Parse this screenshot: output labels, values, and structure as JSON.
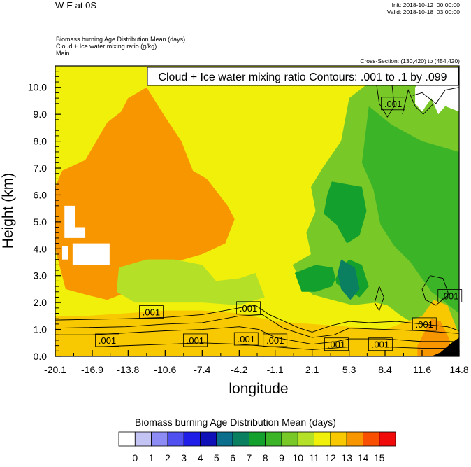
{
  "header": {
    "title": "W-E at 0S",
    "init": "Init: 2018-10-12_00:00:00",
    "valid": "Valid: 2018-10-18_03:00:00"
  },
  "meta": {
    "field1": "Biomass burning Age Distribution Mean   (days)",
    "field2": "Cloud + Ice water mixing ratio   (g/kg)",
    "field3": "Main",
    "cross_section": "Cross-Section: (130,420) to (454,420)"
  },
  "contour_label": "Cloud + Ice water mixing ratio Contours: .001 to .1 by .099",
  "colors": {
    "palette": [
      "#ffffff",
      "#c4c4f4",
      "#8c8cf4",
      "#5050f0",
      "#1e1ee8",
      "#1010b8",
      "#0a6e8c",
      "#0a8060",
      "#14a02c",
      "#3cb428",
      "#78c828",
      "#b4e028",
      "#f0f00a",
      "#f8c800",
      "#f89600",
      "#f85000",
      "#f00a0a"
    ]
  },
  "chart_data": {
    "type": "heatmap",
    "title": "W-E at 0S",
    "xlabel": "longitude",
    "ylabel": "Height (km)",
    "xlim": [
      -20.1,
      14.8
    ],
    "ylim": [
      0.0,
      10.8
    ],
    "x_ticks": [
      "-20.1",
      "-16.9",
      "-13.8",
      "-10.6",
      "-7.4",
      "-4.2",
      "-1.1",
      "2.1",
      "5.3",
      "8.4",
      "11.6",
      "14.8"
    ],
    "y_ticks": [
      "0.0",
      "1.0",
      "2.0",
      "3.0",
      "4.0",
      "5.0",
      "6.0",
      "7.0",
      "8.0",
      "9.0",
      "10.0"
    ],
    "colorbar": {
      "title": "Biomass burning Age Distribution Mean  (days)",
      "labels": [
        "0",
        "1",
        "2",
        "3",
        "4",
        "5",
        "6",
        "7",
        "8",
        "9",
        "10",
        "11",
        "12",
        "13",
        "14",
        "15"
      ]
    },
    "filled_regions": [
      {
        "name": "background",
        "days": 11.5,
        "lon": [
          -20.1,
          14.8
        ],
        "z": [
          0.0,
          10.8
        ]
      },
      {
        "name": "western-age-13",
        "days": 13,
        "polygon": [
          [
            -19.5,
            6.9
          ],
          [
            -17.5,
            7.3
          ],
          [
            -15.6,
            8.7
          ],
          [
            -14.4,
            9.1
          ],
          [
            -13.8,
            9.6
          ],
          [
            -12.2,
            10.0
          ],
          [
            -10.6,
            8.9
          ],
          [
            -9.2,
            8.0
          ],
          [
            -8.2,
            6.9
          ],
          [
            -7.0,
            6.6
          ],
          [
            -5.2,
            5.6
          ],
          [
            -4.6,
            5.1
          ],
          [
            -5.4,
            4.2
          ],
          [
            -7.4,
            3.8
          ],
          [
            -10.6,
            3.4
          ],
          [
            -13.2,
            3.3
          ],
          [
            -13.8,
            2.4
          ],
          [
            -15.6,
            2.1
          ],
          [
            -17.5,
            2.3
          ],
          [
            -19.2,
            2.5
          ],
          [
            -20.1,
            4.0
          ],
          [
            -20.1,
            6.3
          ]
        ]
      },
      {
        "name": "mid-age-10",
        "days": 10,
        "polygon": [
          [
            -14.6,
            3.3
          ],
          [
            -12.2,
            3.6
          ],
          [
            -9.8,
            3.6
          ],
          [
            -7.4,
            3.4
          ],
          [
            -6.2,
            2.8
          ],
          [
            -4.2,
            2.9
          ],
          [
            -2.8,
            3.1
          ],
          [
            -2.0,
            2.2
          ],
          [
            -4.2,
            1.9
          ],
          [
            -7.4,
            2.0
          ],
          [
            -10.6,
            2.0
          ],
          [
            -13.2,
            2.0
          ],
          [
            -14.8,
            2.4
          ]
        ]
      },
      {
        "name": "eastern-age-9",
        "days": 9,
        "polygon": [
          [
            3.0,
            7.0
          ],
          [
            4.6,
            8.0
          ],
          [
            5.3,
            9.6
          ],
          [
            6.8,
            10.1
          ],
          [
            8.4,
            10.3
          ],
          [
            11.0,
            10.3
          ],
          [
            14.8,
            10.8
          ],
          [
            14.8,
            0.9
          ],
          [
            12.6,
            1.1
          ],
          [
            11.0,
            1.2
          ],
          [
            9.8,
            1.5
          ],
          [
            8.6,
            1.9
          ],
          [
            7.6,
            2.0
          ],
          [
            5.6,
            1.9
          ],
          [
            3.8,
            2.1
          ],
          [
            2.1,
            2.3
          ],
          [
            1.2,
            2.8
          ],
          [
            0.4,
            3.4
          ],
          [
            2.0,
            3.8
          ],
          [
            1.6,
            4.6
          ],
          [
            2.4,
            5.4
          ],
          [
            2.0,
            6.3
          ]
        ]
      },
      {
        "name": "eastern-age-8",
        "days": 8,
        "polygon": [
          [
            7.0,
            9.3
          ],
          [
            9.0,
            8.6
          ],
          [
            11.6,
            8.0
          ],
          [
            14.8,
            7.6
          ],
          [
            14.8,
            1.6
          ],
          [
            12.4,
            2.4
          ],
          [
            10.6,
            3.5
          ],
          [
            9.2,
            4.1
          ],
          [
            8.0,
            4.9
          ],
          [
            7.4,
            6.2
          ],
          [
            6.4,
            7.2
          ]
        ]
      },
      {
        "name": "core-age-7",
        "days": 7,
        "polygon": [
          [
            3.8,
            6.5
          ],
          [
            6.4,
            6.3
          ],
          [
            6.8,
            5.4
          ],
          [
            6.2,
            4.5
          ],
          [
            5.1,
            4.2
          ],
          [
            4.2,
            4.9
          ],
          [
            3.1,
            5.3
          ],
          [
            3.4,
            6.0
          ]
        ]
      },
      {
        "name": "lower-core-age-7",
        "days": 7,
        "polygon": [
          [
            0.6,
            3.1
          ],
          [
            2.4,
            3.4
          ],
          [
            3.9,
            3.3
          ],
          [
            4.2,
            2.7
          ],
          [
            6.2,
            2.2
          ],
          [
            7.0,
            2.6
          ],
          [
            6.4,
            3.4
          ],
          [
            5.3,
            3.6
          ],
          [
            4.6,
            3.3
          ],
          [
            3.8,
            2.6
          ],
          [
            2.4,
            2.4
          ],
          [
            1.2,
            2.4
          ]
        ]
      },
      {
        "name": "core-age-6",
        "days": 6,
        "polygon": [
          [
            4.6,
            3.6
          ],
          [
            5.8,
            3.3
          ],
          [
            6.2,
            2.5
          ],
          [
            5.4,
            2.1
          ],
          [
            4.6,
            2.5
          ],
          [
            4.3,
            3.1
          ]
        ]
      },
      {
        "name": "surface-age-12",
        "days": 12,
        "polygon": [
          [
            -20.1,
            1.5
          ],
          [
            -17.5,
            1.5
          ],
          [
            -14.0,
            1.6
          ],
          [
            -10.6,
            1.7
          ],
          [
            -7.4,
            1.7
          ],
          [
            -4.2,
            1.6
          ],
          [
            -1.1,
            1.3
          ],
          [
            2.1,
            1.2
          ],
          [
            5.3,
            1.1
          ],
          [
            8.4,
            1.0
          ],
          [
            11.6,
            1.5
          ],
          [
            12.6,
            2.1
          ],
          [
            13.8,
            1.9
          ],
          [
            14.8,
            0.8
          ],
          [
            14.8,
            0.0
          ],
          [
            -20.1,
            0.0
          ]
        ]
      },
      {
        "name": "surface-age-13",
        "days": 13,
        "polygon": [
          [
            11.2,
            0.4
          ],
          [
            12.4,
            1.4
          ],
          [
            13.2,
            1.3
          ],
          [
            14.0,
            0.6
          ],
          [
            14.0,
            0.0
          ],
          [
            11.2,
            0.0
          ]
        ]
      },
      {
        "name": "missing-a",
        "days": 0,
        "polygon": [
          [
            -19.3,
            5.6
          ],
          [
            -18.4,
            5.6
          ],
          [
            -18.4,
            4.8
          ],
          [
            -17.5,
            4.8
          ],
          [
            -17.5,
            4.4
          ],
          [
            -19.3,
            4.4
          ]
        ]
      },
      {
        "name": "missing-b",
        "days": 0,
        "polygon": [
          [
            -18.6,
            4.2
          ],
          [
            -15.4,
            4.2
          ],
          [
            -15.4,
            3.4
          ],
          [
            -18.6,
            3.4
          ]
        ]
      },
      {
        "name": "missing-c",
        "days": 0,
        "polygon": [
          [
            -19.5,
            4.1
          ],
          [
            -19.0,
            4.1
          ],
          [
            -19.0,
            3.6
          ],
          [
            -19.5,
            3.6
          ]
        ]
      },
      {
        "name": "missing-d",
        "days": 0,
        "polygon": [
          [
            11.0,
            10.0
          ],
          [
            11.6,
            10.3
          ],
          [
            12.6,
            10.1
          ],
          [
            13.6,
            10.2
          ],
          [
            14.8,
            10.3
          ],
          [
            14.8,
            9.1
          ],
          [
            13.6,
            9.3
          ],
          [
            13.0,
            9.0
          ],
          [
            12.4,
            9.6
          ],
          [
            11.6,
            9.1
          ],
          [
            11.0,
            9.4
          ]
        ]
      },
      {
        "name": "terrain",
        "days": null,
        "polygon": [
          [
            12.4,
            0.0
          ],
          [
            13.2,
            0.15
          ],
          [
            14.0,
            0.45
          ],
          [
            14.8,
            0.7
          ],
          [
            14.8,
            0.0
          ]
        ]
      }
    ],
    "contour_lines": [
      [
        [
          -20.1,
          1.35
        ],
        [
          -14.0,
          1.4
        ],
        [
          -10.6,
          1.45
        ],
        [
          -7.4,
          1.55
        ],
        [
          -4.2,
          1.8
        ],
        [
          -2.8,
          1.9
        ],
        [
          -1.6,
          1.55
        ],
        [
          1.0,
          1.05
        ],
        [
          2.1,
          0.9
        ],
        [
          3.8,
          1.15
        ],
        [
          5.3,
          1.3
        ],
        [
          7.0,
          1.25
        ],
        [
          9.4,
          1.3
        ],
        [
          11.6,
          1.2
        ],
        [
          13.8,
          1.1
        ],
        [
          14.8,
          0.95
        ]
      ],
      [
        [
          -20.1,
          1.05
        ],
        [
          -14.0,
          1.1
        ],
        [
          -10.6,
          1.2
        ],
        [
          -7.4,
          1.25
        ],
        [
          -4.2,
          1.5
        ],
        [
          -2.2,
          1.55
        ],
        [
          -0.4,
          1.05
        ],
        [
          2.1,
          0.7
        ],
        [
          4.0,
          0.8
        ],
        [
          5.3,
          1.05
        ],
        [
          8.4,
          1.0
        ],
        [
          11.6,
          0.95
        ],
        [
          14.8,
          0.85
        ]
      ],
      [
        [
          -20.1,
          0.8
        ],
        [
          -16.9,
          0.8
        ],
        [
          -10.6,
          0.95
        ],
        [
          -7.4,
          1.0
        ],
        [
          -4.2,
          1.1
        ],
        [
          -2.5,
          1.0
        ],
        [
          -1.1,
          0.7
        ],
        [
          2.1,
          0.45
        ],
        [
          4.2,
          0.55
        ],
        [
          5.3,
          0.65
        ],
        [
          8.4,
          0.65
        ],
        [
          11.6,
          0.55
        ],
        [
          14.8,
          0.55
        ]
      ],
      [
        [
          -20.1,
          0.35
        ],
        [
          -16.9,
          0.35
        ],
        [
          -13.8,
          0.4
        ],
        [
          -10.6,
          0.45
        ],
        [
          -7.4,
          0.5
        ],
        [
          -4.2,
          0.45
        ],
        [
          -1.1,
          0.35
        ],
        [
          2.1,
          0.25
        ],
        [
          5.3,
          0.35
        ],
        [
          8.4,
          0.35
        ],
        [
          11.6,
          0.3
        ],
        [
          14.8,
          0.3
        ]
      ],
      [
        [
          10.8,
          9.7
        ],
        [
          11.6,
          9.8
        ],
        [
          12.8,
          9.4
        ],
        [
          13.6,
          9.9
        ],
        [
          14.8,
          10.0
        ]
      ],
      [
        [
          9.9,
          9.0
        ],
        [
          10.4,
          9.9
        ],
        [
          11.0,
          9.3
        ],
        [
          11.7,
          9.0
        ],
        [
          12.6,
          9.4
        ]
      ],
      [
        [
          7.6,
          10.3
        ],
        [
          7.9,
          9.4
        ],
        [
          8.6,
          8.9
        ],
        [
          9.2,
          9.3
        ],
        [
          9.0,
          10.1
        ]
      ],
      [
        [
          11.6,
          2.5
        ],
        [
          12.3,
          3.0
        ],
        [
          13.4,
          2.9
        ],
        [
          13.9,
          2.3
        ],
        [
          12.8,
          1.9
        ],
        [
          11.9,
          2.1
        ],
        [
          11.6,
          2.5
        ]
      ],
      [
        [
          7.5,
          2.0
        ],
        [
          7.9,
          2.6
        ],
        [
          8.3,
          2.2
        ],
        [
          7.9,
          1.7
        ],
        [
          7.5,
          2.0
        ]
      ]
    ],
    "contour_labels": [
      {
        "text": ".001",
        "lon": 9.1,
        "z": 9.4
      },
      {
        "text": ".001",
        "lon": -11.8,
        "z": 1.65
      },
      {
        "text": ".001",
        "lon": -3.4,
        "z": 1.8
      },
      {
        "text": ".001",
        "lon": 14.0,
        "z": 2.25
      },
      {
        "text": ".001",
        "lon": 11.8,
        "z": 1.2
      },
      {
        "text": ".001",
        "lon": -15.6,
        "z": 0.6
      },
      {
        "text": ".001",
        "lon": -8.0,
        "z": 0.6
      },
      {
        "text": ".001",
        "lon": -3.6,
        "z": 0.65
      },
      {
        "text": ".001",
        "lon": -1.1,
        "z": 0.6
      },
      {
        "text": ".001",
        "lon": 4.2,
        "z": 0.45
      },
      {
        "text": ".001",
        "lon": 8.0,
        "z": 0.45
      }
    ]
  }
}
